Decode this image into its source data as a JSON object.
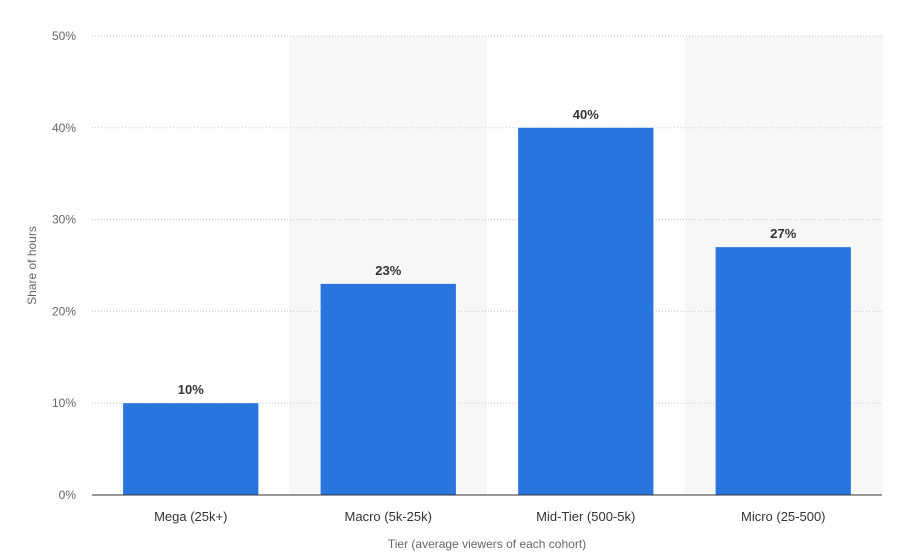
{
  "chart_data": {
    "type": "bar",
    "categories": [
      "Mega (25k+)",
      "Macro (5k-25k)",
      "Mid-Tier (500-5k)",
      "Micro (25-500)"
    ],
    "values": [
      10,
      23,
      40,
      27
    ],
    "data_labels": [
      "10%",
      "23%",
      "40%",
      "27%"
    ],
    "title": "",
    "xlabel": "Tier (average viewers of each cohort)",
    "ylabel": "Share of hours",
    "ylim": [
      0,
      50
    ],
    "yticks": [
      0,
      10,
      20,
      30,
      40,
      50
    ],
    "ytick_labels": [
      "0%",
      "10%",
      "20%",
      "30%",
      "40%",
      "50%"
    ],
    "grid": true,
    "alternating_bands": true,
    "legend": "none",
    "colors": {
      "bar": "#2a75dd",
      "band": "#f7f7f7",
      "grid": "#c8c8c8",
      "axis": "#333333"
    }
  }
}
